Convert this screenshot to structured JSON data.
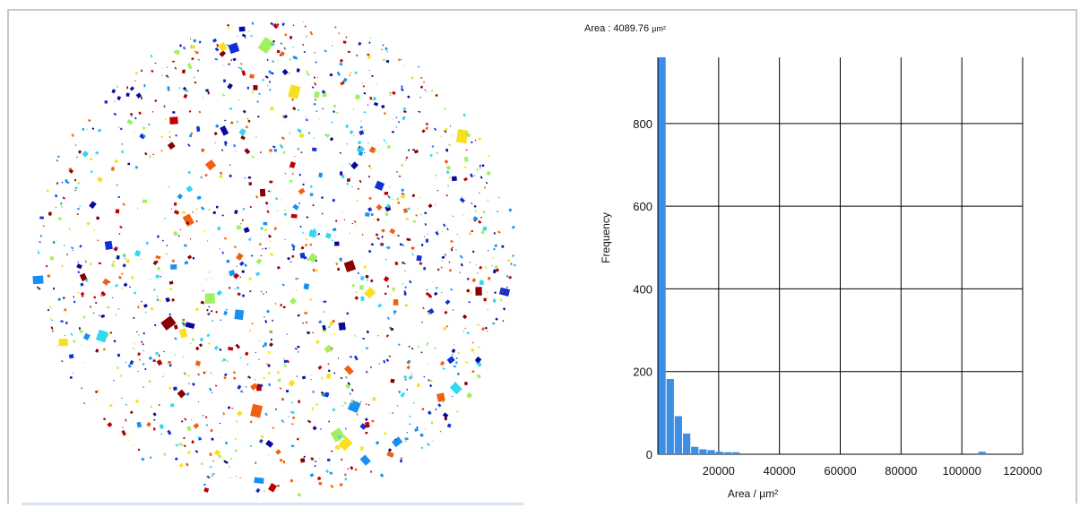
{
  "readout": {
    "label": "Area : ",
    "value": "4089.76",
    "unit": "µm²"
  },
  "particles": {
    "colors": [
      "#0a0a9a",
      "#1030d8",
      "#1890f0",
      "#30d8f0",
      "#a0f060",
      "#f8e020",
      "#f06010",
      "#c00000",
      "#880000"
    ]
  },
  "chart_data": {
    "type": "bar",
    "xlabel": "Area / µm²",
    "ylabel": "Frequency",
    "xlim": [
      0,
      120000
    ],
    "ylim": [
      0,
      960
    ],
    "xticks": [
      20000,
      40000,
      60000,
      80000,
      100000,
      120000
    ],
    "yticks": [
      0,
      200,
      400,
      600,
      800
    ],
    "grid": true,
    "bar_color": "#3d8ee6",
    "bin_width": 2700,
    "bins": [
      {
        "x0": 0,
        "count": 960
      },
      {
        "x0": 2700,
        "count": 182
      },
      {
        "x0": 5400,
        "count": 92
      },
      {
        "x0": 8100,
        "count": 50
      },
      {
        "x0": 10800,
        "count": 18
      },
      {
        "x0": 13500,
        "count": 12
      },
      {
        "x0": 16200,
        "count": 10
      },
      {
        "x0": 18900,
        "count": 6
      },
      {
        "x0": 21600,
        "count": 5
      },
      {
        "x0": 24300,
        "count": 5
      },
      {
        "x0": 105300,
        "count": 6
      }
    ]
  }
}
